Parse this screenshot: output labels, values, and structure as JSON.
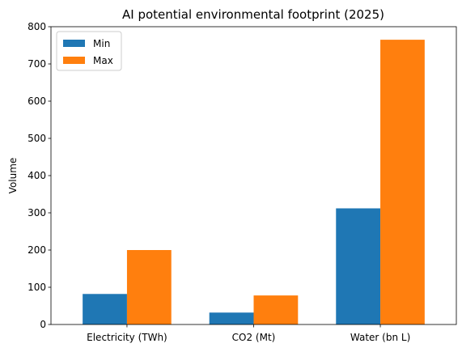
{
  "chart_data": {
    "type": "bar",
    "title": "AI potential environmental footprint (2025)",
    "xlabel": "",
    "ylabel": "Volume",
    "categories": [
      "Electricity (TWh)",
      "CO2 (Mt)",
      "Water (bn L)"
    ],
    "series": [
      {
        "name": "Min",
        "color": "#1f77b4",
        "values": [
          82,
          32,
          312
        ]
      },
      {
        "name": "Max",
        "color": "#ff7f0e",
        "values": [
          200,
          78,
          765
        ]
      }
    ],
    "ylim": [
      0,
      800
    ],
    "yticks": [
      0,
      100,
      200,
      300,
      400,
      500,
      600,
      700,
      800
    ],
    "legend_position": "top-left",
    "grid": false
  }
}
